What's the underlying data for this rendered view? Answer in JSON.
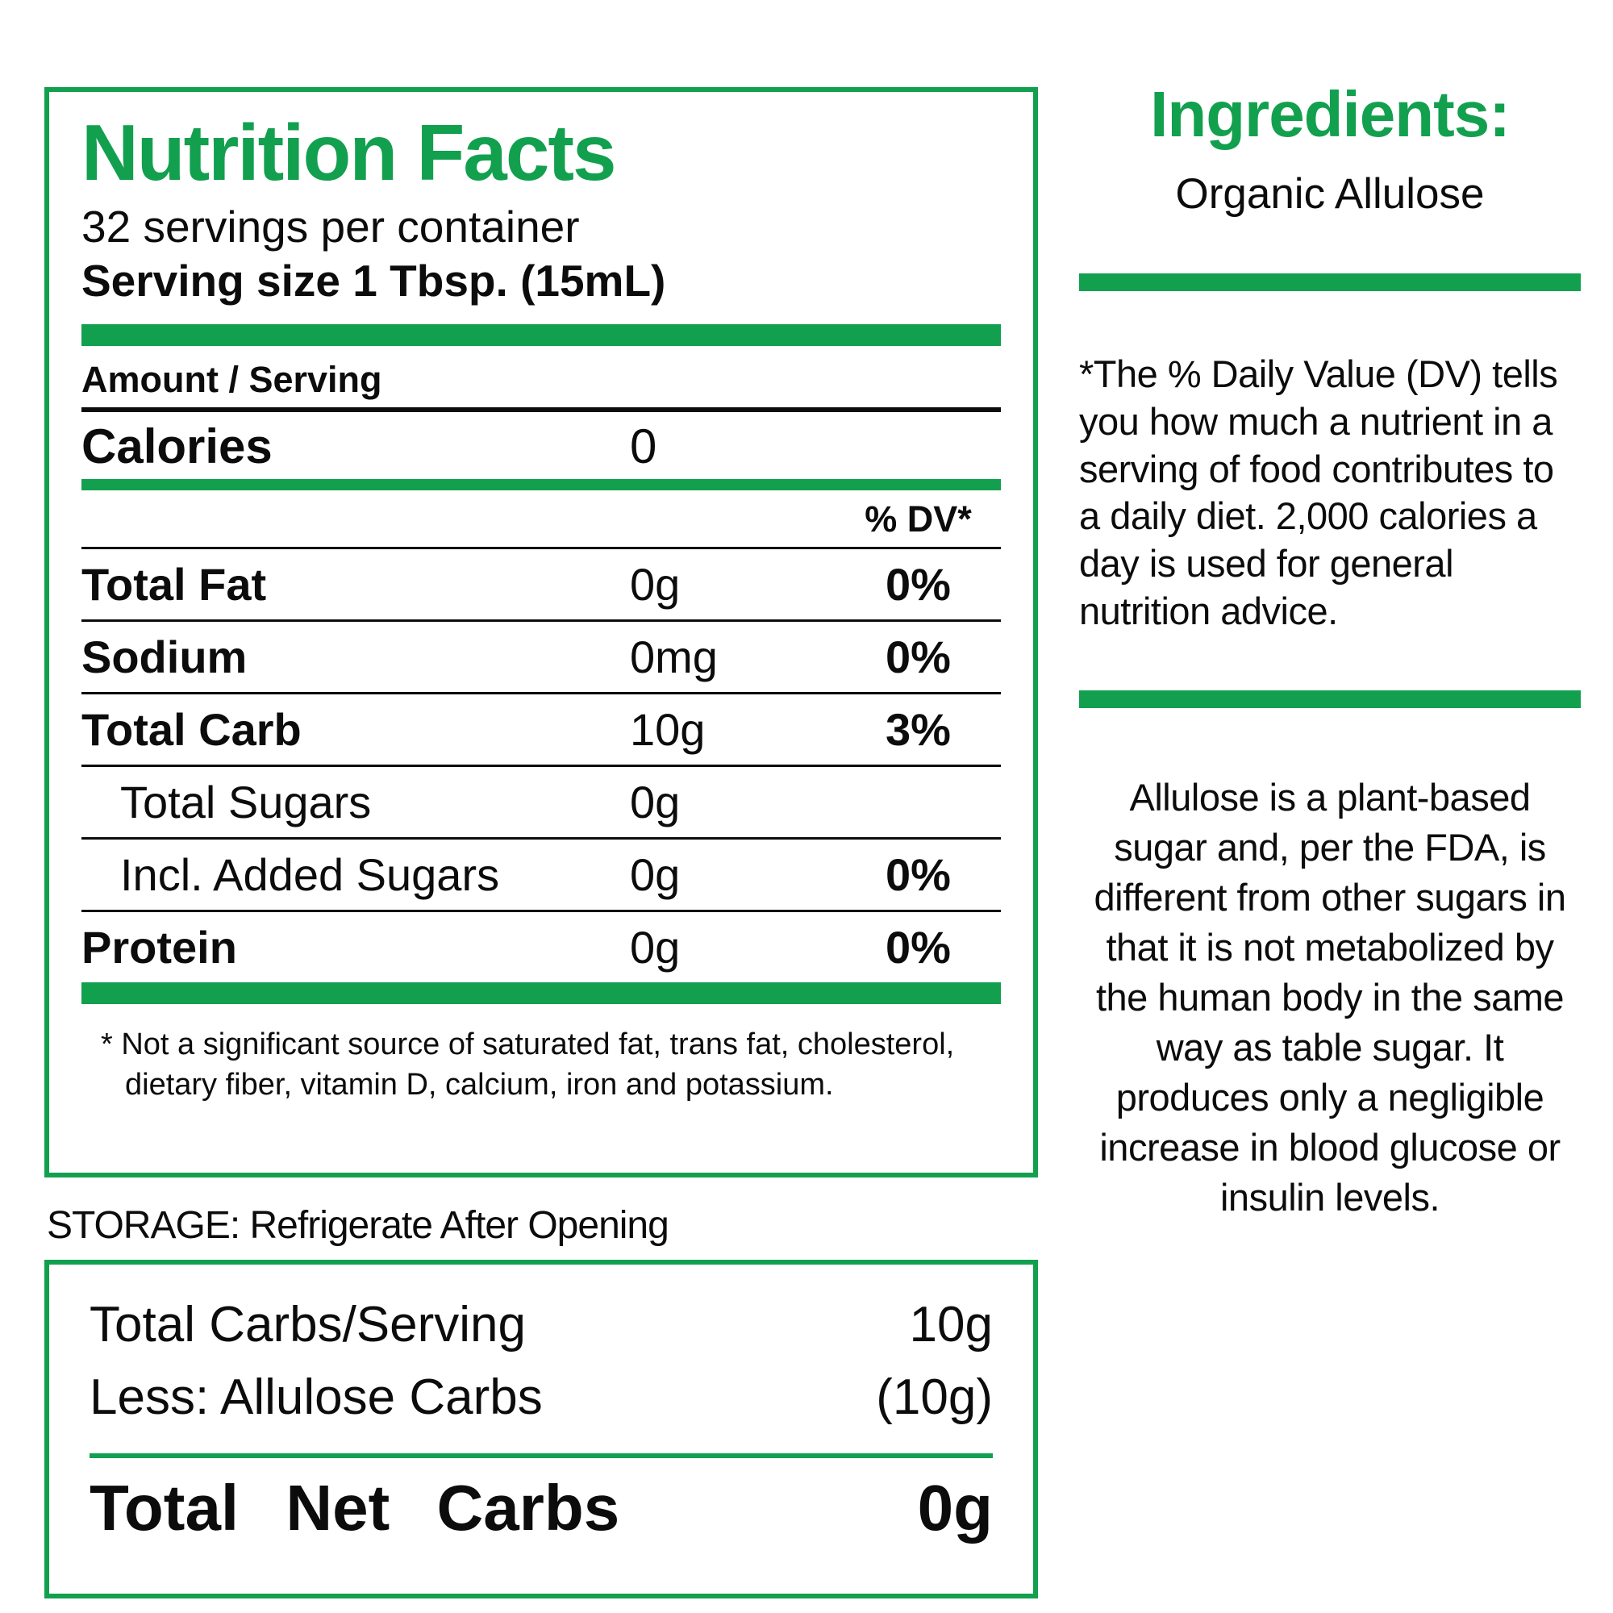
{
  "colors": {
    "green": "#12A04F",
    "black": "#0c0c0c"
  },
  "nutrition_panel": {
    "title": "Nutrition Facts",
    "servings_per_container": "32 servings per container",
    "serving_size": "Serving size 1 Tbsp. (15mL)",
    "amount_per_serving": "Amount / Serving",
    "calories_label": "Calories",
    "calories_value": "0",
    "dv_header": "% DV*",
    "rows": [
      {
        "label": "Total Fat",
        "amount": "0g",
        "dv": "0%"
      },
      {
        "label": "Sodium",
        "amount": "0mg",
        "dv": "0%"
      },
      {
        "label": "Total Carb",
        "amount": "10g",
        "dv": "3%"
      },
      {
        "label": "Total Sugars",
        "amount": "0g",
        "dv": ""
      },
      {
        "label": "Incl. Added Sugars",
        "amount": "0g",
        "dv": "0%"
      },
      {
        "label": "Protein",
        "amount": "0g",
        "dv": "0%"
      }
    ],
    "footnote": "* Not a significant source of saturated fat, trans fat, cholesterol, dietary fiber, vitamin D, calcium, iron and potassium."
  },
  "storage_note": "STORAGE: Refrigerate After Opening",
  "net_carbs_panel": {
    "rows": [
      {
        "label": "Total Carbs/Serving",
        "value": "10g"
      },
      {
        "label": "Less: Allulose Carbs",
        "value": "(10g)"
      }
    ],
    "total_label": "Total Net Carbs",
    "total_value": "0g"
  },
  "ingredients": {
    "title": "Ingredients:",
    "value": "Organic Allulose"
  },
  "dv_note": "*The % Daily Value (DV) tells you how much a nutrient in a serving of food contributes to a daily diet. 2,000 calories a day is used for general nutrition advice.",
  "allulose_note": "Allulose is a plant-based sugar and, per the FDA, is different from other sugars in that it is not metabolized by the human body in the same way as table sugar. It produces only a negligible increase in blood glucose or insulin levels."
}
